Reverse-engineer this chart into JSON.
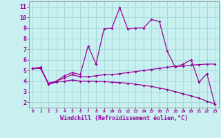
{
  "background_color": "#c8f0f0",
  "grid_color": "#a8d8d8",
  "line_color": "#990099",
  "xlim": [
    -0.5,
    23.5
  ],
  "ylim": [
    1.5,
    11.5
  ],
  "xticks": [
    0,
    1,
    2,
    3,
    4,
    5,
    6,
    7,
    8,
    9,
    10,
    11,
    12,
    13,
    14,
    15,
    16,
    17,
    18,
    19,
    20,
    21,
    22,
    23
  ],
  "yticks": [
    2,
    3,
    4,
    5,
    6,
    7,
    8,
    9,
    10,
    11
  ],
  "xlabel": "Windchill (Refroidissement éolien,°C)",
  "line1_x": [
    0,
    1,
    2,
    3,
    4,
    5,
    6,
    7,
    8,
    9,
    10,
    11,
    12,
    13,
    14,
    15,
    16,
    17,
    18,
    19,
    20,
    21,
    22,
    23
  ],
  "line1_y": [
    5.2,
    5.3,
    3.7,
    4.0,
    4.5,
    4.8,
    4.6,
    7.3,
    5.6,
    8.9,
    9.0,
    10.9,
    8.9,
    9.0,
    9.0,
    9.8,
    9.6,
    6.8,
    5.3,
    5.6,
    6.0,
    3.9,
    4.7,
    1.8
  ],
  "line2_x": [
    0,
    1,
    2,
    3,
    4,
    5,
    6,
    7,
    8,
    9,
    10,
    11,
    12,
    13,
    14,
    15,
    16,
    17,
    18,
    19,
    20,
    21,
    22,
    23
  ],
  "line2_y": [
    5.2,
    5.2,
    3.8,
    4.0,
    4.3,
    4.6,
    4.4,
    4.4,
    4.5,
    4.6,
    4.6,
    4.7,
    4.8,
    4.9,
    5.0,
    5.1,
    5.2,
    5.3,
    5.4,
    5.4,
    5.5,
    5.55,
    5.6,
    5.6
  ],
  "line3_x": [
    0,
    1,
    2,
    3,
    4,
    5,
    6,
    7,
    8,
    9,
    10,
    11,
    12,
    13,
    14,
    15,
    16,
    17,
    18,
    19,
    20,
    21,
    22,
    23
  ],
  "line3_y": [
    5.2,
    5.2,
    3.7,
    3.9,
    4.0,
    4.1,
    4.0,
    4.0,
    4.0,
    3.95,
    3.9,
    3.85,
    3.8,
    3.7,
    3.6,
    3.5,
    3.35,
    3.2,
    3.0,
    2.8,
    2.6,
    2.4,
    2.1,
    1.85
  ],
  "xtick_fontsize": 4.5,
  "ytick_fontsize": 6.0,
  "xlabel_fontsize": 6.0
}
